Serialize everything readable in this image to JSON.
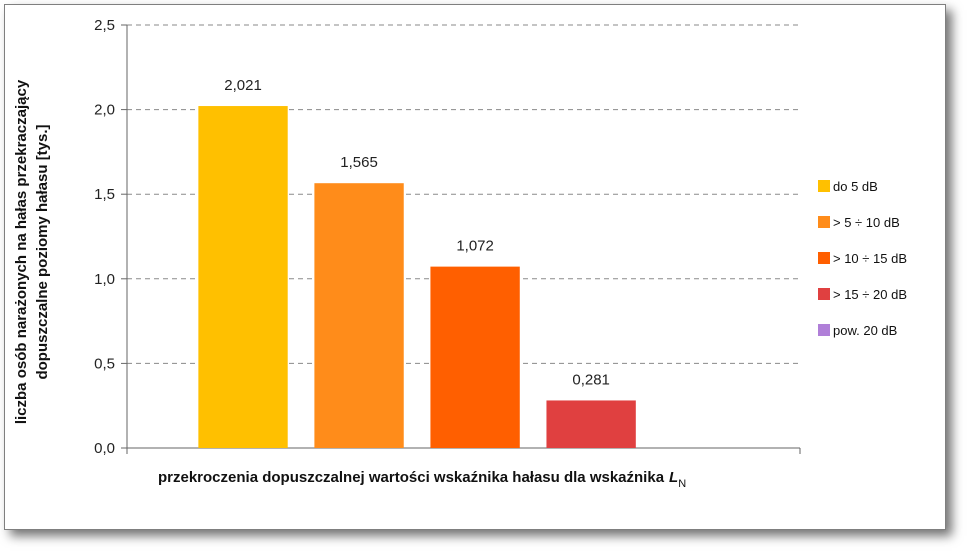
{
  "chart_data": {
    "type": "bar",
    "categories": [
      "do 5 dB",
      "> 5 ÷ 10 dB",
      "> 10 ÷ 15 dB",
      "> 15 ÷ 20 dB",
      "pow.  20 dB"
    ],
    "values": [
      2.021,
      1.565,
      1.072,
      0.281,
      0
    ],
    "data_labels": [
      "2,021",
      "1,565",
      "1,072",
      "0,281",
      ""
    ],
    "colors": [
      "#FFC000",
      "#FF8C1A",
      "#FF5F00",
      "#E04040",
      "#B07FD8"
    ],
    "ylim": [
      0,
      2.5
    ],
    "yticks": [
      0,
      0.5,
      1.0,
      1.5,
      2.0,
      2.5
    ],
    "ytick_labels": [
      "0,0",
      "0,5",
      "1,0",
      "1,5",
      "2,0",
      "2,5"
    ],
    "ylabel_lines": [
      "liczba osób narażonych na hałas przekraczający",
      "dopuszczalne poziomy hałasu [tys.]"
    ],
    "xlabel": "przekroczenia dopuszczalnej wartości wskaźnika hałasu dla wskaźnika",
    "xlabel_symbol": "L",
    "xlabel_subscript": "N",
    "gridlines": true,
    "legend_position": "right"
  }
}
